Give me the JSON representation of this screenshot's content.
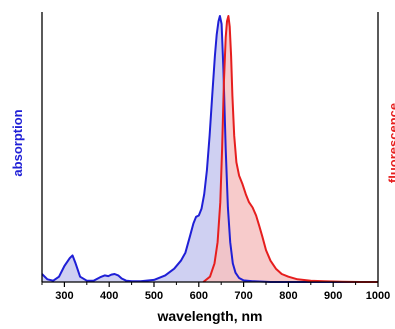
{
  "chart_data": {
    "type": "area",
    "title": "",
    "xlabel": "wavelength, nm",
    "ylabel_left": "absorption",
    "ylabel_right": "fluorescence",
    "xlim": [
      250,
      1000
    ],
    "ylim": [
      0,
      1
    ],
    "xticks": [
      300,
      400,
      500,
      600,
      700,
      800,
      900,
      1000
    ],
    "grid": false,
    "series": [
      {
        "name": "absorption",
        "color": "#1f1fd6",
        "fill": "#c7c8f0",
        "x": [
          250,
          262,
          275,
          288,
          300,
          312,
          318,
          325,
          335,
          350,
          365,
          380,
          390,
          398,
          405,
          412,
          420,
          428,
          438,
          450,
          470,
          500,
          525,
          545,
          560,
          570,
          580,
          588,
          594,
          600,
          606,
          612,
          618,
          624,
          630,
          636,
          640,
          644,
          647,
          651,
          655,
          660,
          665,
          670,
          676,
          682,
          690,
          700,
          720,
          760,
          1000
        ],
        "y": [
          0.03,
          0.01,
          0.005,
          0.02,
          0.06,
          0.09,
          0.1,
          0.07,
          0.02,
          0.005,
          0.005,
          0.018,
          0.025,
          0.022,
          0.028,
          0.03,
          0.025,
          0.013,
          0.005,
          0.003,
          0.003,
          0.008,
          0.025,
          0.05,
          0.08,
          0.11,
          0.17,
          0.22,
          0.245,
          0.25,
          0.275,
          0.33,
          0.42,
          0.55,
          0.7,
          0.85,
          0.93,
          0.98,
          1.0,
          0.97,
          0.8,
          0.5,
          0.28,
          0.15,
          0.07,
          0.035,
          0.015,
          0.006,
          0.003,
          0.0,
          0.0
        ]
      },
      {
        "name": "fluorescence",
        "color": "#e61e1e",
        "fill": "#f6c2c2",
        "x": [
          610,
          625,
          635,
          642,
          648,
          652,
          656,
          660,
          663,
          666,
          669,
          672,
          675,
          679,
          684,
          690,
          697,
          705,
          712,
          720,
          728,
          735,
          742,
          750,
          760,
          772,
          785,
          800,
          820,
          850,
          880,
          920,
          960,
          1000
        ],
        "y": [
          0.0,
          0.02,
          0.07,
          0.15,
          0.3,
          0.5,
          0.75,
          0.92,
          0.98,
          1.0,
          0.96,
          0.85,
          0.7,
          0.55,
          0.45,
          0.4,
          0.37,
          0.33,
          0.3,
          0.28,
          0.25,
          0.21,
          0.17,
          0.12,
          0.08,
          0.05,
          0.03,
          0.02,
          0.01,
          0.005,
          0.003,
          0.001,
          0.0,
          0.0
        ]
      }
    ]
  }
}
